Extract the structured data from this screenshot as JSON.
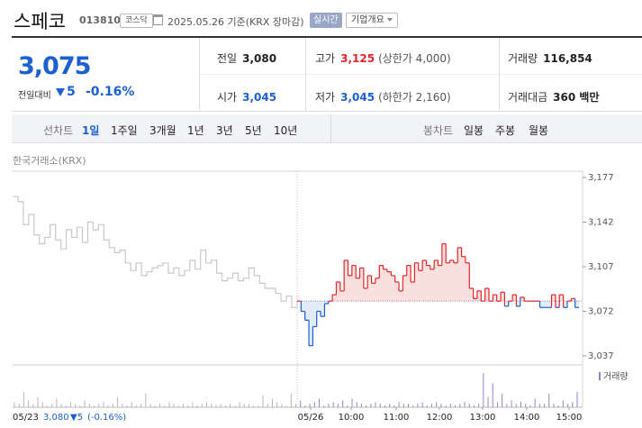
{
  "stock": {
    "name": "스페코",
    "code": "013810",
    "market": "코스닥",
    "date_text": "2025.05.26 기준(KRX 장마감)",
    "realtime_label": "실시간",
    "company_info_label": "기업개요"
  },
  "quote": {
    "price": "3,075",
    "change_label": "전일대비",
    "change_value": "5",
    "change_pct": "-0.16%",
    "prev_close_label": "전일",
    "prev_close": "3,080",
    "high_label": "고가",
    "high": "3,125",
    "upper_limit": "(상한가 4,000)",
    "volume_label": "거래량",
    "volume": "116,854",
    "open_label": "시가",
    "open": "3,045",
    "low_label": "저가",
    "low": "3,045",
    "lower_limit": "(하한가 2,160)",
    "value_label": "거래대금",
    "value": "360 백만"
  },
  "tabs": {
    "line_chart_label": "선차트",
    "periods": [
      "1일",
      "1주일",
      "3개월",
      "1년",
      "3년",
      "5년",
      "10년"
    ],
    "active_period": "1일",
    "candle_chart_label": "봉차트",
    "candle_periods": [
      "일봉",
      "주봉",
      "월봉"
    ]
  },
  "exchange_label": "한국거래소(KRX)",
  "volume_legend": "거래량",
  "footer": {
    "date": "05/23",
    "price": "3,080",
    "change": "▼5",
    "pct": "(-0.16%)"
  },
  "colors": {
    "up": "#e0262a",
    "down": "#1b5fd1",
    "prev_day_line": "#c8c8c8",
    "volume_bar": "#9a7fc7"
  },
  "chart_data": {
    "type": "line",
    "y_ticks": [
      "3,177",
      "3,142",
      "3,107",
      "3,072",
      "3,037"
    ],
    "ylim": [
      3037,
      3177
    ],
    "reference": 3080,
    "x_ticks": [
      "05/26",
      "10:00",
      "11:00",
      "12:00",
      "13:00",
      "14:00",
      "15:00"
    ],
    "series": [
      {
        "session": "05/23",
        "values": [
          3162,
          3158,
          3140,
          3148,
          3132,
          3125,
          3130,
          3140,
          3128,
          3121,
          3136,
          3130,
          3138,
          3126,
          3142,
          3136,
          3140,
          3128,
          3122,
          3118,
          3120,
          3110,
          3104,
          3110,
          3100,
          3103,
          3106,
          3108,
          3110,
          3102,
          3106,
          3100,
          3104,
          3112,
          3105,
          3120,
          3110,
          3112,
          3102,
          3096,
          3098,
          3102,
          3096,
          3098,
          3106,
          3100,
          3094,
          3090,
          3090,
          3086,
          3080,
          3084,
          3075,
          3080
        ]
      },
      {
        "session": "05/26",
        "values": [
          3080,
          3072,
          3065,
          3045,
          3060,
          3072,
          3068,
          3078,
          3080,
          3085,
          3095,
          3088,
          3112,
          3100,
          3108,
          3098,
          3106,
          3090,
          3100,
          3094,
          3098,
          3108,
          3105,
          3103,
          3100,
          3095,
          3088,
          3100,
          3108,
          3095,
          3110,
          3104,
          3112,
          3108,
          3105,
          3112,
          3108,
          3125,
          3110,
          3112,
          3110,
          3122,
          3115,
          3110,
          3090,
          3082,
          3088,
          3080,
          3090,
          3080,
          3085,
          3080,
          3087,
          3076,
          3080,
          3085,
          3076,
          3083,
          3080,
          3080,
          3080,
          3080,
          3075,
          3075,
          3075,
          3085,
          3075,
          3085,
          3075,
          3080,
          3082,
          3075,
          3075
        ]
      }
    ],
    "volume": [
      3,
      2,
      9,
      4,
      2,
      6,
      3,
      1,
      2,
      5,
      2,
      1,
      3,
      2,
      1,
      4,
      2,
      1,
      2,
      3,
      1,
      2,
      6,
      2,
      1,
      3,
      1,
      2,
      8,
      2,
      1,
      2,
      1,
      3,
      2,
      1,
      2,
      1,
      3,
      1,
      2,
      3,
      2,
      1,
      2,
      1,
      2,
      1,
      3,
      2,
      2,
      1,
      1,
      7,
      2,
      5,
      3,
      2,
      1,
      8,
      2,
      4,
      1,
      2,
      3,
      5,
      1,
      2,
      3,
      2,
      4,
      1,
      5,
      3,
      2,
      1,
      2,
      3,
      2,
      1,
      2,
      1,
      3,
      2,
      2,
      1,
      2,
      3,
      1,
      2,
      3,
      2,
      1,
      2,
      1,
      2,
      3,
      2,
      1,
      2,
      20,
      6,
      14,
      3,
      8,
      2,
      4,
      2,
      3,
      2,
      1,
      5,
      2,
      2,
      8,
      2,
      1,
      4,
      2,
      3,
      9
    ]
  }
}
